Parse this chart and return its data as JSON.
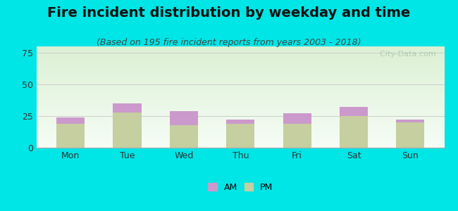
{
  "title": "Fire incident distribution by weekday and time",
  "subtitle": "(Based on 195 fire incident reports from years 2003 - 2018)",
  "categories": [
    "Mon",
    "Tue",
    "Wed",
    "Thu",
    "Fri",
    "Sat",
    "Sun"
  ],
  "pm_values": [
    19,
    28,
    18,
    19,
    19,
    25,
    20
  ],
  "am_values": [
    5,
    7,
    11,
    3,
    8,
    7,
    2
  ],
  "am_color": "#cc99cc",
  "pm_color": "#c5cf9f",
  "background_outer": "#00e5e5",
  "ylim": [
    0,
    80
  ],
  "yticks": [
    0,
    25,
    50,
    75
  ],
  "bar_width": 0.5,
  "title_fontsize": 14,
  "subtitle_fontsize": 9,
  "tick_fontsize": 9,
  "legend_fontsize": 9,
  "grid_color": "#cccccc",
  "axis_color": "#aaaaaa",
  "watermark_text": "  City-Data.com",
  "watermark_color": "#b0c8b0"
}
